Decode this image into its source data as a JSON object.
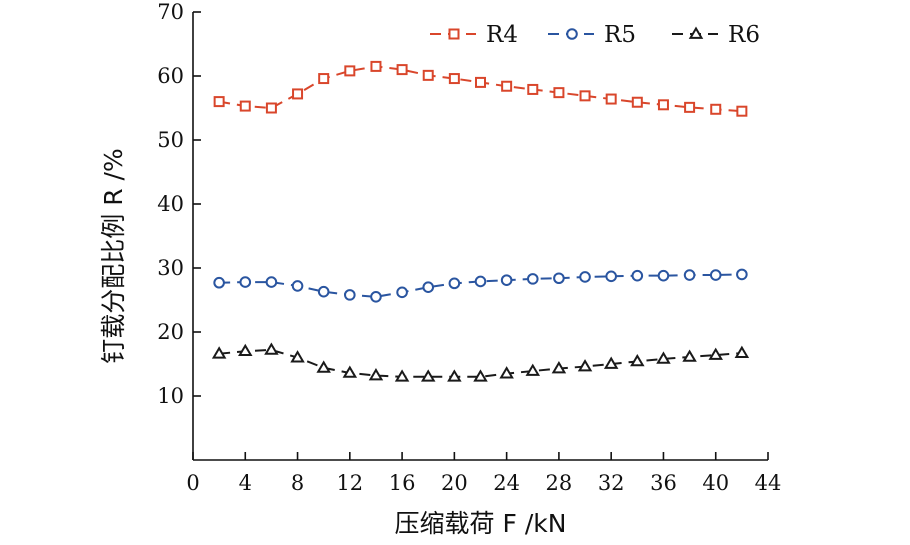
{
  "chart_data": {
    "type": "line",
    "xlabel": "压缩载荷 F /kN",
    "ylabel": "钉载分配比例 R /%",
    "xlim": [
      0,
      44
    ],
    "ylim": [
      0,
      70
    ],
    "x_ticks": [
      "0",
      "4",
      "8",
      "12",
      "16",
      "20",
      "24",
      "28",
      "32",
      "36",
      "40",
      "44"
    ],
    "y_ticks": [
      "10",
      "20",
      "30",
      "40",
      "50",
      "60",
      "70"
    ],
    "grid": false,
    "legend_position": "top-right",
    "x": [
      2,
      4,
      6,
      8,
      10,
      12,
      14,
      16,
      18,
      20,
      22,
      24,
      26,
      28,
      30,
      32,
      34,
      36,
      38,
      40,
      42
    ],
    "series": [
      {
        "name": "R4",
        "marker": "square",
        "color": "#d9462b",
        "values": [
          56.0,
          55.3,
          55.0,
          57.2,
          59.6,
          60.8,
          61.5,
          61.0,
          60.1,
          59.6,
          59.0,
          58.4,
          57.9,
          57.4,
          56.9,
          56.4,
          55.9,
          55.5,
          55.1,
          54.8,
          54.5
        ]
      },
      {
        "name": "R5",
        "marker": "circle",
        "color": "#2a55a0",
        "values": [
          27.7,
          27.8,
          27.8,
          27.2,
          26.3,
          25.8,
          25.5,
          26.2,
          27.0,
          27.6,
          27.9,
          28.1,
          28.3,
          28.4,
          28.6,
          28.7,
          28.8,
          28.8,
          28.9,
          28.9,
          29.0
        ]
      },
      {
        "name": "R6",
        "marker": "triangle",
        "color": "#1a1a1a",
        "values": [
          16.6,
          17.0,
          17.2,
          16.0,
          14.4,
          13.6,
          13.2,
          13.0,
          13.0,
          13.0,
          13.0,
          13.5,
          13.9,
          14.3,
          14.6,
          15.0,
          15.4,
          15.8,
          16.1,
          16.4,
          16.7
        ]
      }
    ]
  }
}
